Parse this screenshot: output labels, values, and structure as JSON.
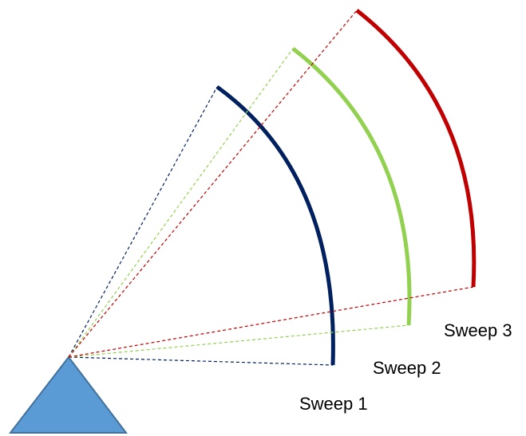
{
  "diagram": {
    "source": {
      "shape": "triangle",
      "fill": "#5B9BD5",
      "stroke": "#41719C"
    },
    "sweeps": [
      {
        "label": "Sweep 1",
        "color": "#002060"
      },
      {
        "label": "Sweep 2",
        "color": "#92D050"
      },
      {
        "label": "Sweep 3",
        "color": "#C00000"
      }
    ]
  }
}
